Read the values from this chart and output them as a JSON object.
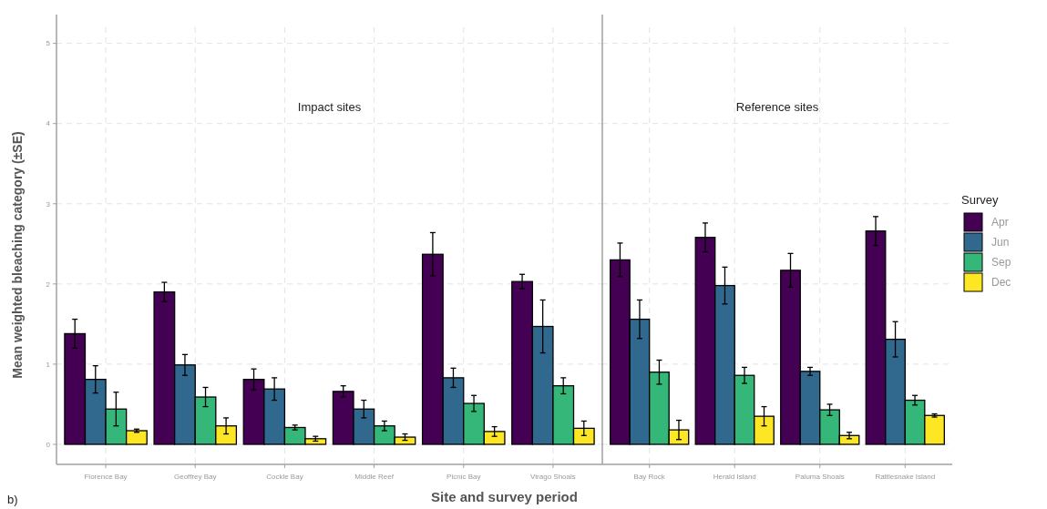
{
  "chart_data": [
    {
      "type": "bar",
      "title": "Impact sites",
      "ylabel": "Mean weighted bleaching category (±SE)",
      "xlabel": "Site and survey period",
      "annotations": [
        "b)"
      ],
      "categories": [
        "Florence Bay",
        "Geoffrey Bay",
        "Cockle Bay",
        "Middle Reef",
        "Picnic Bay",
        "Virago Shoals"
      ],
      "series": [
        {
          "color": "#440154",
          "values": [
            1.38,
            1.9,
            0.81,
            0.66,
            2.37,
            2.03
          ],
          "errors": [
            0.18,
            0.12,
            0.13,
            0.07,
            0.27,
            0.09
          ]
        },
        {
          "color": "#31688e",
          "values": [
            0.81,
            0.99,
            0.69,
            0.44,
            0.83,
            1.47
          ],
          "errors": [
            0.17,
            0.13,
            0.14,
            0.11,
            0.12,
            0.33
          ]
        },
        {
          "color": "#35b779",
          "values": [
            0.44,
            0.59,
            0.21,
            0.23,
            0.51,
            0.73
          ],
          "errors": [
            0.21,
            0.12,
            0.03,
            0.06,
            0.1,
            0.1
          ]
        },
        {
          "color": "#fde725",
          "values": [
            0.17,
            0.23,
            0.07,
            0.09,
            0.16,
            0.2
          ],
          "errors": [
            0.02,
            0.1,
            0.03,
            0.04,
            0.06,
            0.09
          ]
        }
      ],
      "ylim": [
        -0.25,
        5.2
      ],
      "yticks": [
        0,
        1,
        2,
        3,
        4,
        5
      ],
      "grid": true,
      "legend": false
    },
    {
      "type": "bar",
      "title": "Reference sites",
      "legend_title": "Survey",
      "categories": [
        "Bay Rock",
        "Herald Island",
        "Paluma Shoals",
        "Rattlesnake Island"
      ],
      "series": [
        {
          "name": "Apr",
          "color": "#440154",
          "values": [
            2.3,
            2.58,
            2.17,
            2.66
          ],
          "errors": [
            0.21,
            0.18,
            0.21,
            0.18
          ]
        },
        {
          "name": "Jun",
          "color": "#31688e",
          "values": [
            1.56,
            1.98,
            0.91,
            1.31
          ],
          "errors": [
            0.24,
            0.23,
            0.05,
            0.22
          ]
        },
        {
          "name": "Sep",
          "color": "#35b779",
          "values": [
            0.9,
            0.86,
            0.43,
            0.55
          ],
          "errors": [
            0.15,
            0.1,
            0.07,
            0.06
          ]
        },
        {
          "name": "Dec",
          "color": "#fde725",
          "values": [
            0.18,
            0.35,
            0.11,
            0.36
          ],
          "errors": [
            0.12,
            0.12,
            0.04,
            0.02
          ]
        }
      ],
      "ylim": [
        -0.25,
        5.2
      ],
      "yticks": [
        0,
        1,
        2,
        3,
        4,
        5
      ],
      "grid": true,
      "tick_labels": "x",
      "legend": "right"
    }
  ]
}
